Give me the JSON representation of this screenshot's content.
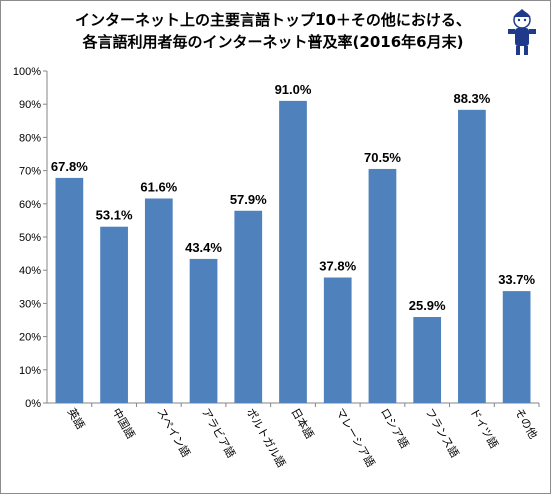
{
  "chart_data": {
    "type": "bar",
    "title_lines": [
      "インターネット上の主要言語トップ10＋その他における、",
      "各言語利用者毎のインターネット普及率(2016年6月末)"
    ],
    "categories": [
      "英語",
      "中国語",
      "スペイン語",
      "アラビア語",
      "ポルトガル語",
      "日本語",
      "マレーシア語",
      "ロシア語",
      "フランス語",
      "ドイツ語",
      "その他"
    ],
    "values": [
      67.8,
      53.1,
      61.6,
      43.4,
      57.9,
      91.0,
      37.8,
      70.5,
      25.9,
      88.3,
      33.7
    ],
    "value_labels": [
      "67.8%",
      "53.1%",
      "61.6%",
      "43.4%",
      "57.9%",
      "91.0%",
      "37.8%",
      "70.5%",
      "25.9%",
      "88.3%",
      "33.7%"
    ],
    "y_ticks": [
      "0%",
      "10%",
      "20%",
      "30%",
      "40%",
      "50%",
      "60%",
      "70%",
      "80%",
      "90%",
      "100%"
    ],
    "ylim": [
      0,
      100
    ],
    "grid": false,
    "legend": "none",
    "bar_color": "#4f81bd"
  },
  "decor": {
    "mascot_icon": "mascot-character-icon"
  }
}
